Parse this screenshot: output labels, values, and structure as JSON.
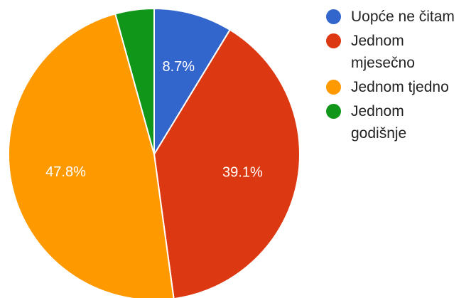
{
  "chart_data": {
    "type": "pie",
    "categories": [
      "Uopće ne čitam",
      "Jednom mjesečno",
      "Jednom tjedno",
      "Jednom godišnje"
    ],
    "values": [
      8.7,
      39.1,
      47.8,
      4.3
    ],
    "data_labels": [
      "8.7%",
      "39.1%",
      "47.8%",
      ""
    ],
    "colors": [
      "#3366cc",
      "#dc3912",
      "#ff9900",
      "#109618"
    ],
    "start_angle_deg": 0,
    "direction": "clockwise",
    "legend_position": "right",
    "legend": [
      "Uopće ne čitam",
      "Jednom mjesečno",
      "Jednom tjedno",
      "Jednom godišnje"
    ],
    "title": ""
  }
}
